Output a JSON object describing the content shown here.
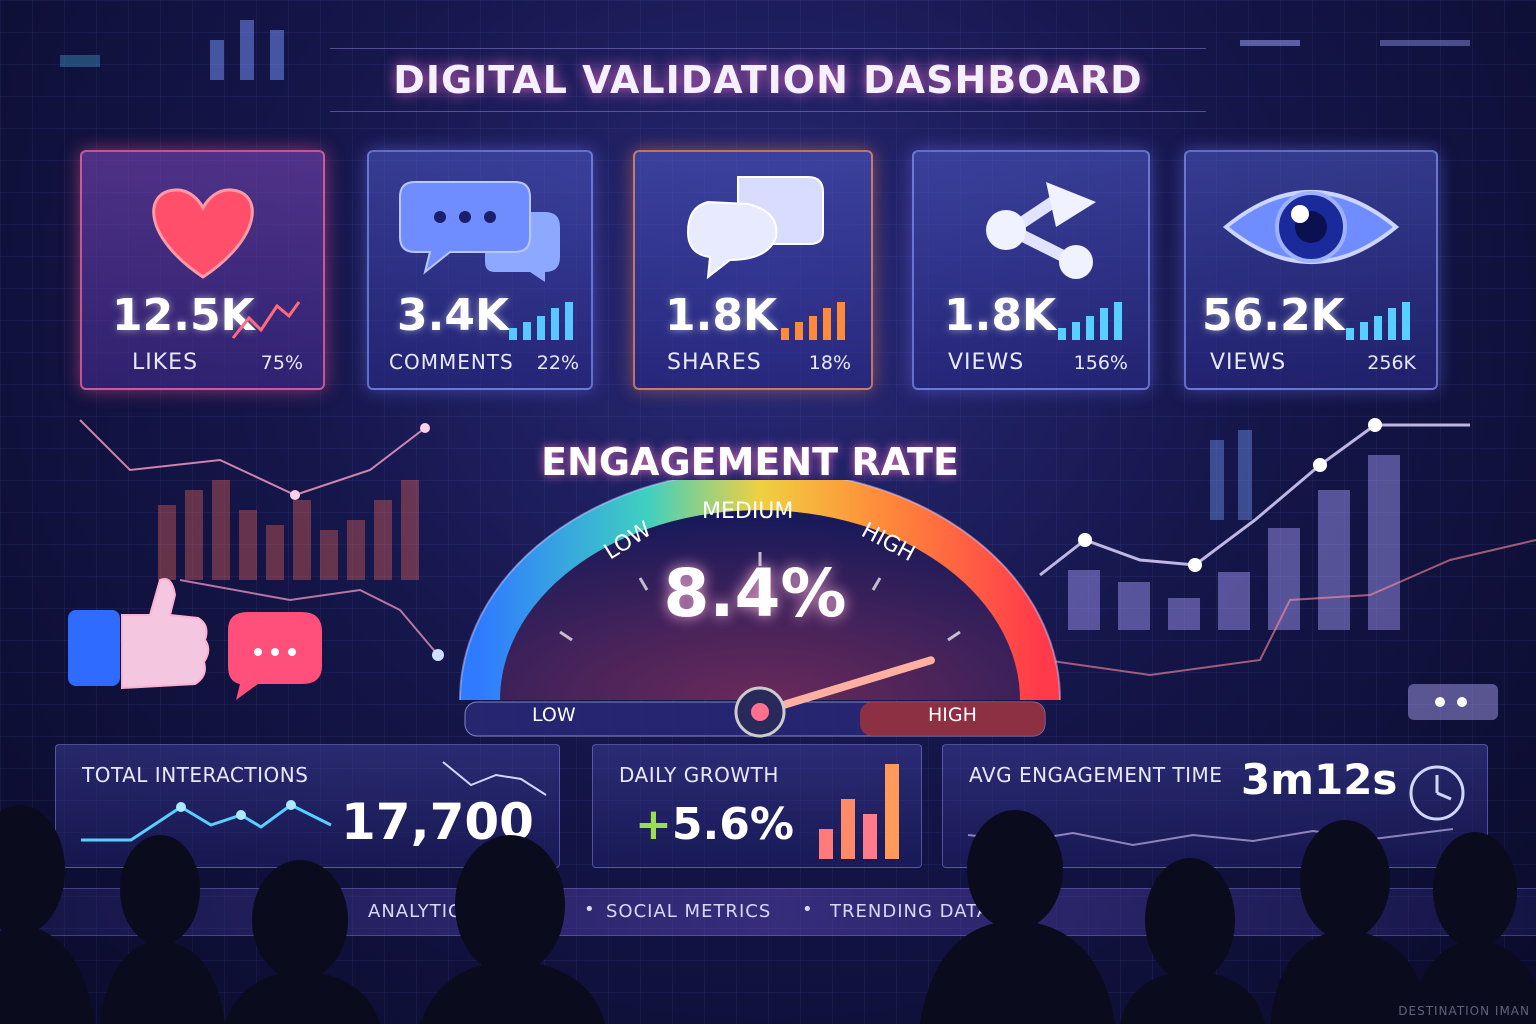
{
  "title": "DIGITAL VALIDATION DASHBOARD",
  "cards": [
    {
      "icon": "heart-icon",
      "value": "12.5K",
      "label": "LIKES",
      "pct": "75%"
    },
    {
      "icon": "comment-icon",
      "value": "3.4K",
      "label": "COMMENTS",
      "pct": "22%"
    },
    {
      "icon": "share-bubbles-icon",
      "value": "1.8K",
      "label": "SHARES",
      "pct": "18%"
    },
    {
      "icon": "share-icon",
      "value": "1.8K",
      "label": "VIEWS",
      "pct": "156%"
    },
    {
      "icon": "eye-icon",
      "value": "56.2K",
      "label": "VIEWS",
      "pct": "256K"
    }
  ],
  "gauge": {
    "title": "ENGAGEMENT RATE",
    "value": "8.4%",
    "zones": [
      "LOW",
      "MEDIUM",
      "HIGH"
    ],
    "low_label": "LOW",
    "high_label": "HIGH",
    "level": 0.84
  },
  "panels": {
    "total": {
      "label": "TOTAL INTERACTIONS",
      "value": "17,700"
    },
    "growth": {
      "label": "DAILY GROWTH",
      "value": "+5.6%"
    },
    "time": {
      "label": "AVG ENGAGEMENT TIME",
      "value": "3m12s",
      "icon": "clock-icon"
    }
  },
  "ticker": [
    "ANALYTIC",
    "SOCIAL METRICS",
    "TRENDING DATA"
  ],
  "watermark": "DESTINATION IMAN",
  "colors": {
    "accent_pink": "#ff4f8b",
    "accent_blue": "#3a7bff",
    "accent_orange": "#ff8a3a",
    "growth_green": "#9be04a"
  }
}
